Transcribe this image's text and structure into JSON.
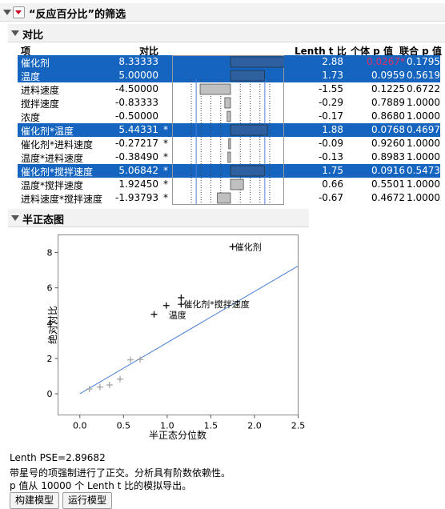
{
  "report": {
    "title": "“反应百分比”的筛选"
  },
  "contrasts": {
    "section_title": "对比",
    "headers": {
      "term": "项",
      "contrast": "对比",
      "lenth_t": "Lenth t 比",
      "ind_p": "个体 p 值",
      "sim_p": "联合 p 值"
    },
    "rows": [
      {
        "term": "催化剂",
        "contrast": "8.33333",
        "star": "",
        "t": "2.88",
        "p": "0.0267*",
        "pj": "0.1795",
        "selected": true,
        "pink": true
      },
      {
        "term": "温度",
        "contrast": "5.00000",
        "star": "",
        "t": "1.73",
        "p": "0.0959",
        "pj": "0.5619",
        "selected": true,
        "pink": false
      },
      {
        "term": "进料速度",
        "contrast": "-4.50000",
        "star": "",
        "t": "-1.55",
        "p": "0.1225",
        "pj": "0.6722",
        "selected": false,
        "pink": false
      },
      {
        "term": "搅拌速度",
        "contrast": "-0.83333",
        "star": "",
        "t": "-0.29",
        "p": "0.7889",
        "pj": "1.0000",
        "selected": false,
        "pink": false
      },
      {
        "term": "浓度",
        "contrast": "-0.50000",
        "star": "",
        "t": "-0.17",
        "p": "0.8680",
        "pj": "1.0000",
        "selected": false,
        "pink": false
      },
      {
        "term": "催化剂*温度",
        "contrast": "5.44331",
        "star": "*",
        "t": "1.88",
        "p": "0.0768",
        "pj": "0.4697",
        "selected": true,
        "pink": false
      },
      {
        "term": "催化剂*进料速度",
        "contrast": "-0.27217",
        "star": "*",
        "t": "-0.09",
        "p": "0.9260",
        "pj": "1.0000",
        "selected": false,
        "pink": false
      },
      {
        "term": "温度*进料速度",
        "contrast": "-0.38490",
        "star": "*",
        "t": "-0.13",
        "p": "0.8983",
        "pj": "1.0000",
        "selected": false,
        "pink": false
      },
      {
        "term": "催化剂*搅拌速度",
        "contrast": "5.06842",
        "star": "*",
        "t": "1.75",
        "p": "0.0916",
        "pj": "0.5473",
        "selected": true,
        "pink": false
      },
      {
        "term": "温度*搅拌速度",
        "contrast": "1.92450",
        "star": "*",
        "t": "0.66",
        "p": "0.5501",
        "pj": "1.0000",
        "selected": false,
        "pink": false
      },
      {
        "term": "进料速度*搅拌速度",
        "contrast": "-1.93793",
        "star": "*",
        "t": "-0.67",
        "p": "0.4672",
        "pj": "1.0000",
        "selected": false,
        "pink": false
      }
    ]
  },
  "halfnormal": {
    "section_title": "半正态图"
  },
  "chart_data": {
    "type": "scatter",
    "xlabel": "半正态分位数",
    "ylabel": "绝对对比",
    "xlim": [
      -0.25,
      2.5
    ],
    "ylim": [
      -1.2,
      9
    ],
    "xticks": [
      "0.0",
      "0.5",
      "1.0",
      "1.5",
      "2.0",
      "2.5"
    ],
    "yticks": [
      "0",
      "2",
      "4",
      "6",
      "8"
    ],
    "points": [
      {
        "x": 0.11,
        "y": 0.27,
        "label": ""
      },
      {
        "x": 0.23,
        "y": 0.38,
        "label": ""
      },
      {
        "x": 0.34,
        "y": 0.5,
        "label": ""
      },
      {
        "x": 0.46,
        "y": 0.83,
        "label": ""
      },
      {
        "x": 0.58,
        "y": 1.92,
        "label": ""
      },
      {
        "x": 0.69,
        "y": 1.94,
        "label": ""
      },
      {
        "x": 0.85,
        "y": 4.5,
        "label": ""
      },
      {
        "x": 0.99,
        "y": 5.0,
        "label": "温度"
      },
      {
        "x": 1.16,
        "y": 5.07,
        "label": "催化剂*搅拌速度"
      },
      {
        "x": 1.16,
        "y": 5.44,
        "label": ""
      },
      {
        "x": 1.75,
        "y": 8.33,
        "label": "催化剂"
      }
    ],
    "line": {
      "x": [
        0,
        2.5
      ],
      "y": [
        0,
        7.24
      ]
    }
  },
  "footer": {
    "pse": "Lenth PSE=2.89682",
    "note1": "带星号的项强制进行了正交。分析具有阶数依赖性。",
    "note2": "p 值从 10000 个 Lenth t 比的模拟导出。"
  },
  "buttons": {
    "make_model": "构建模型",
    "run_model": "运行模型"
  },
  "colors": {
    "selected": "#1565c0",
    "bar_selected": "#2e5f9e",
    "bar": "#c0c0c0",
    "fit_line": "#4a7fd4",
    "pink": "#e0306a"
  }
}
